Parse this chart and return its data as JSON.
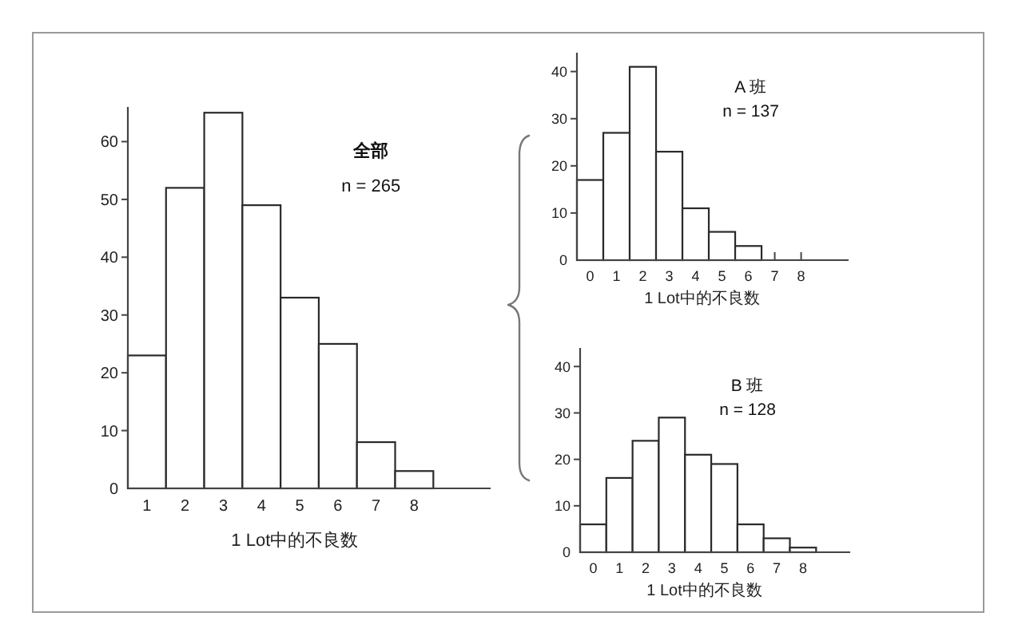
{
  "chart_data": [
    {
      "type": "histogram",
      "title": "全部",
      "subtitle": "n = 265",
      "xlabel": "1 Lot中的不良数",
      "bins": [
        0.5,
        1.5,
        2.5,
        3.5,
        4.5,
        5.5,
        6.5,
        7.5,
        8.5
      ],
      "values": [
        23,
        52,
        65,
        49,
        33,
        25,
        8,
        3
      ],
      "color": "#ffffff",
      "xlim": [
        0.5,
        10
      ],
      "xticks": [
        1,
        2,
        3,
        4,
        5,
        6,
        7,
        8
      ],
      "ylim": [
        0,
        66
      ],
      "yticks": [
        0,
        10,
        20,
        30,
        40,
        50,
        60
      ]
    },
    {
      "type": "histogram",
      "title": "A 班",
      "subtitle": "n = 137",
      "xlabel": "1 Lot中的不良数",
      "bins": [
        -0.5,
        0.5,
        1.5,
        2.5,
        3.5,
        4.5,
        5.5,
        6.5
      ],
      "values": [
        17,
        27,
        41,
        23,
        11,
        6,
        3
      ],
      "color": "#ffffff",
      "xlim": [
        -0.5,
        9.8
      ],
      "xticks": [
        0,
        1,
        2,
        3,
        4,
        5,
        6,
        7,
        8
      ],
      "ylim": [
        0,
        44
      ],
      "yticks": [
        0,
        10,
        20,
        30,
        40
      ]
    },
    {
      "type": "histogram",
      "title": "B 班",
      "subtitle": "n = 128",
      "xlabel": "1 Lot中的不良数",
      "bins": [
        -0.5,
        0.5,
        1.5,
        2.5,
        3.5,
        4.5,
        5.5,
        6.5,
        7.5,
        8.5
      ],
      "values": [
        6,
        16,
        24,
        29,
        21,
        19,
        6,
        3,
        1
      ],
      "color": "#ffffff",
      "xlim": [
        -0.5,
        9.8
      ],
      "xticks": [
        0,
        1,
        2,
        3,
        4,
        5,
        6,
        7,
        8
      ],
      "ylim": [
        0,
        44
      ],
      "yticks": [
        0,
        10,
        20,
        30,
        40
      ]
    }
  ]
}
